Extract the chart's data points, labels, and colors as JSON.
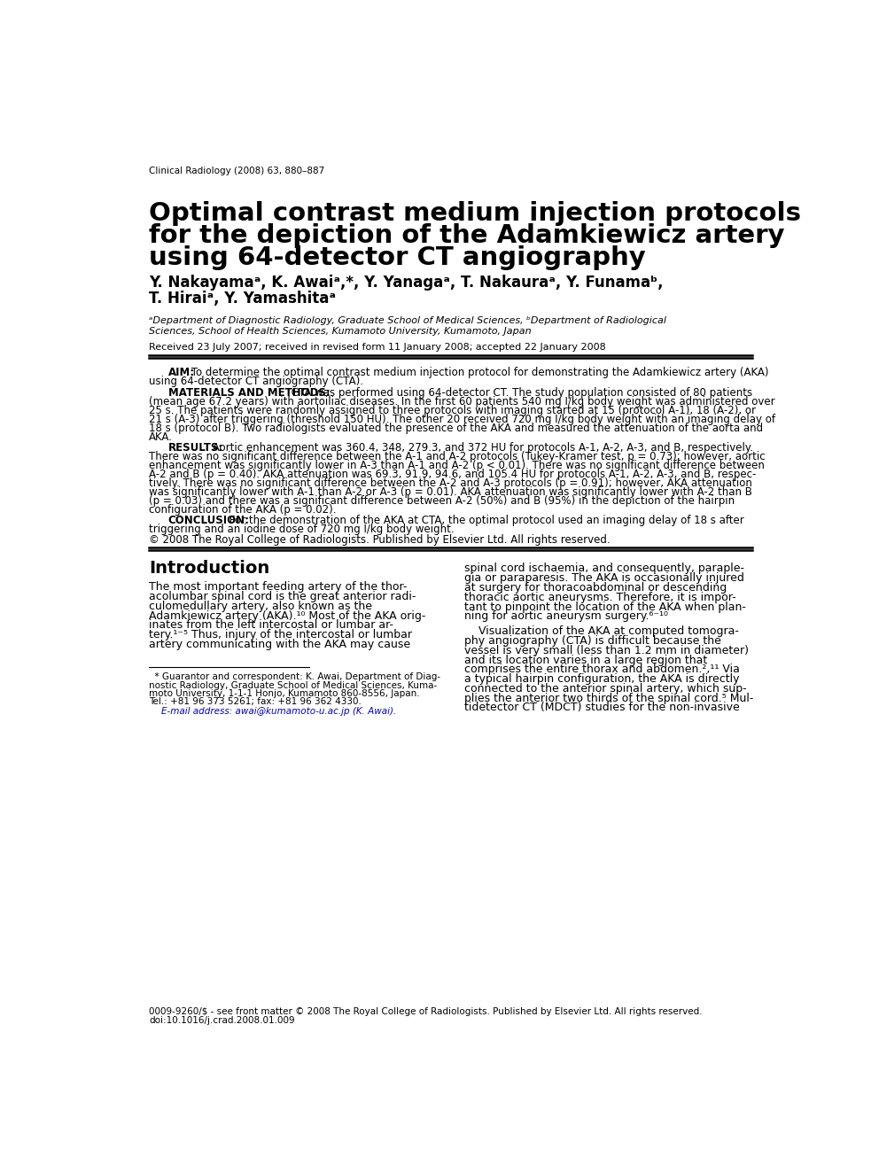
{
  "journal_ref": "Clinical Radiology (2008) 63, 880–887",
  "title_line1": "Optimal contrast medium injection protocols",
  "title_line2": "for the depiction of the Adamkiewicz artery",
  "title_line3": "using 64-detector CT angiography",
  "authors": "Y. Nakayamaᵃ, K. Awaiᵃ,*, Y. Yanagaᵃ, T. Nakauraᵃ, Y. Funamaᵇ,",
  "authors2": "T. Hiraiᵃ, Y. Yamashitaᵃ",
  "affiliation1": "ᵃDepartment of Diagnostic Radiology, Graduate School of Medical Sciences, ᵇDepartment of Radiological",
  "affiliation2": "Sciences, School of Health Sciences, Kumamoto University, Kumamoto, Japan",
  "received": "Received 23 July 2007; received in revised form 11 January 2008; accepted 22 January 2008",
  "copyright": "© 2008 The Royal College of Radiologists. Published by Elsevier Ltd. All rights reserved.",
  "intro_heading": "Introduction",
  "blue_color": "#0000cc",
  "bg_color": "#ffffff"
}
